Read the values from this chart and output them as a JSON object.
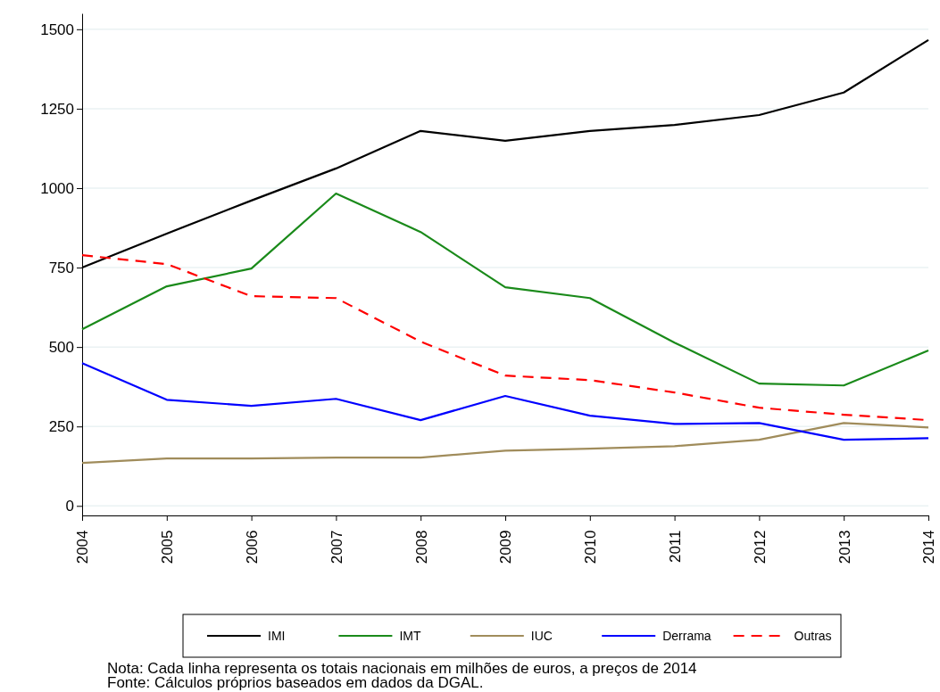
{
  "chart_data": {
    "type": "line",
    "categories": [
      "2004",
      "2005",
      "2006",
      "2007",
      "2008",
      "2009",
      "2010",
      "2011",
      "2012",
      "2013",
      "2014"
    ],
    "ylim": [
      -30,
      1550
    ],
    "yticks": [
      0,
      250,
      500,
      750,
      1000,
      1250,
      1500
    ],
    "grid": "y",
    "legend": "bottom",
    "line_style": "solid",
    "marker": "none",
    "series": [
      {
        "name": "IMI",
        "color": "#000000",
        "values": [
          750,
          857,
          961,
          1062,
          1180,
          1149,
          1180,
          1199,
          1230,
          1301,
          1466
        ]
      },
      {
        "name": "IMT",
        "color": "#1a8a1a",
        "values": [
          556,
          691,
          747,
          983,
          862,
          688,
          654,
          514,
          385,
          379,
          489
        ]
      },
      {
        "name": "IUC",
        "color": "#a08c5b",
        "values": [
          135,
          149,
          149,
          152,
          152,
          174,
          180,
          188,
          208,
          261,
          247
        ]
      },
      {
        "name": "Derrama",
        "color": "#0000ff",
        "values": [
          449,
          334,
          315,
          337,
          270,
          346,
          284,
          258,
          261,
          208,
          213
        ]
      },
      {
        "name": "Outras",
        "color": "#ff0000",
        "line_style": "dashed",
        "values": [
          789,
          761,
          660,
          654,
          517,
          410,
          396,
          357,
          309,
          287,
          270
        ]
      }
    ],
    "annotations": [
      "Nota: Cada linha representa os totais nacionais em milhões de euros, a preços de 2014",
      "Fonte: Cálculos próprios baseados em dados da DGAL."
    ]
  }
}
